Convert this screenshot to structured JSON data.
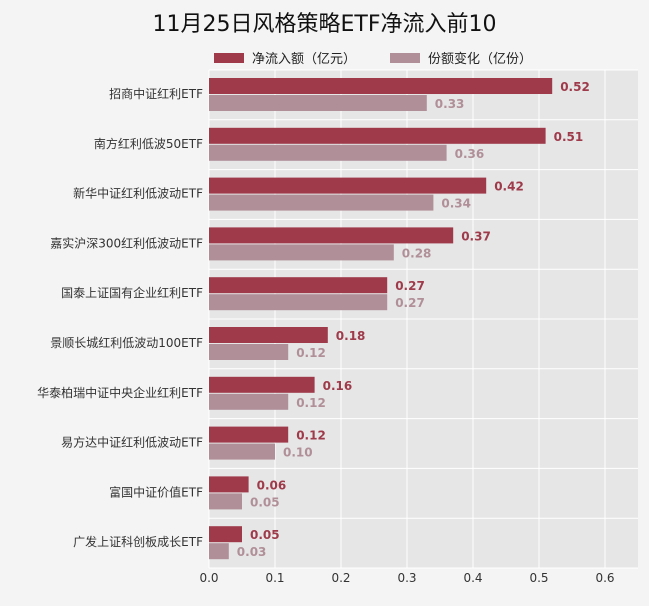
{
  "title": "11月25日风格策略ETF净流入前10",
  "legend": [
    {
      "label": "净流入额（亿元）",
      "color": "#9e3a4a"
    },
    {
      "label": "份额变化（亿份）",
      "color": "#b08f98"
    }
  ],
  "colors": {
    "bg": "#f4f4f4",
    "plot_bg": "#e6e6e6",
    "grid": "#ffffff",
    "series1": "#9e3a4a",
    "series2": "#b08f98"
  },
  "chart_data": {
    "type": "bar",
    "orientation": "horizontal",
    "title": "11月25日风格策略ETF净流入前10",
    "categories": [
      "招商中证红利ETF",
      "南方红利低波50ETF",
      "新华中证红利低波动ETF",
      "嘉实沪深300红利低波动ETF",
      "国泰上证国有企业红利ETF",
      "景顺长城红利低波动100ETF",
      "华泰柏瑞中证中央企业红利ETF",
      "易方达中证红利低波动ETF",
      "富国中证价值ETF",
      "广发上证科创板成长ETF"
    ],
    "series": [
      {
        "name": "净流入额（亿元）",
        "values": [
          0.52,
          0.51,
          0.42,
          0.37,
          0.27,
          0.18,
          0.16,
          0.12,
          0.06,
          0.05
        ]
      },
      {
        "name": "份额变化（亿份）",
        "values": [
          0.33,
          0.36,
          0.34,
          0.28,
          0.27,
          0.12,
          0.12,
          0.1,
          0.05,
          0.03
        ]
      }
    ],
    "labels": [
      [
        "0.52",
        "0.51",
        "0.42",
        "0.37",
        "0.27",
        "0.18",
        "0.16",
        "0.12",
        "0.06",
        "0.05"
      ],
      [
        "0.33",
        "0.36",
        "0.34",
        "0.28",
        "0.27",
        "0.12",
        "0.12",
        "0.10",
        "0.05",
        "0.03"
      ]
    ],
    "xticks": [
      "0.0",
      "0.1",
      "0.2",
      "0.3",
      "0.4",
      "0.5",
      "0.6"
    ],
    "xlim": [
      0,
      0.65
    ],
    "grid": true,
    "legend_position": "top"
  }
}
